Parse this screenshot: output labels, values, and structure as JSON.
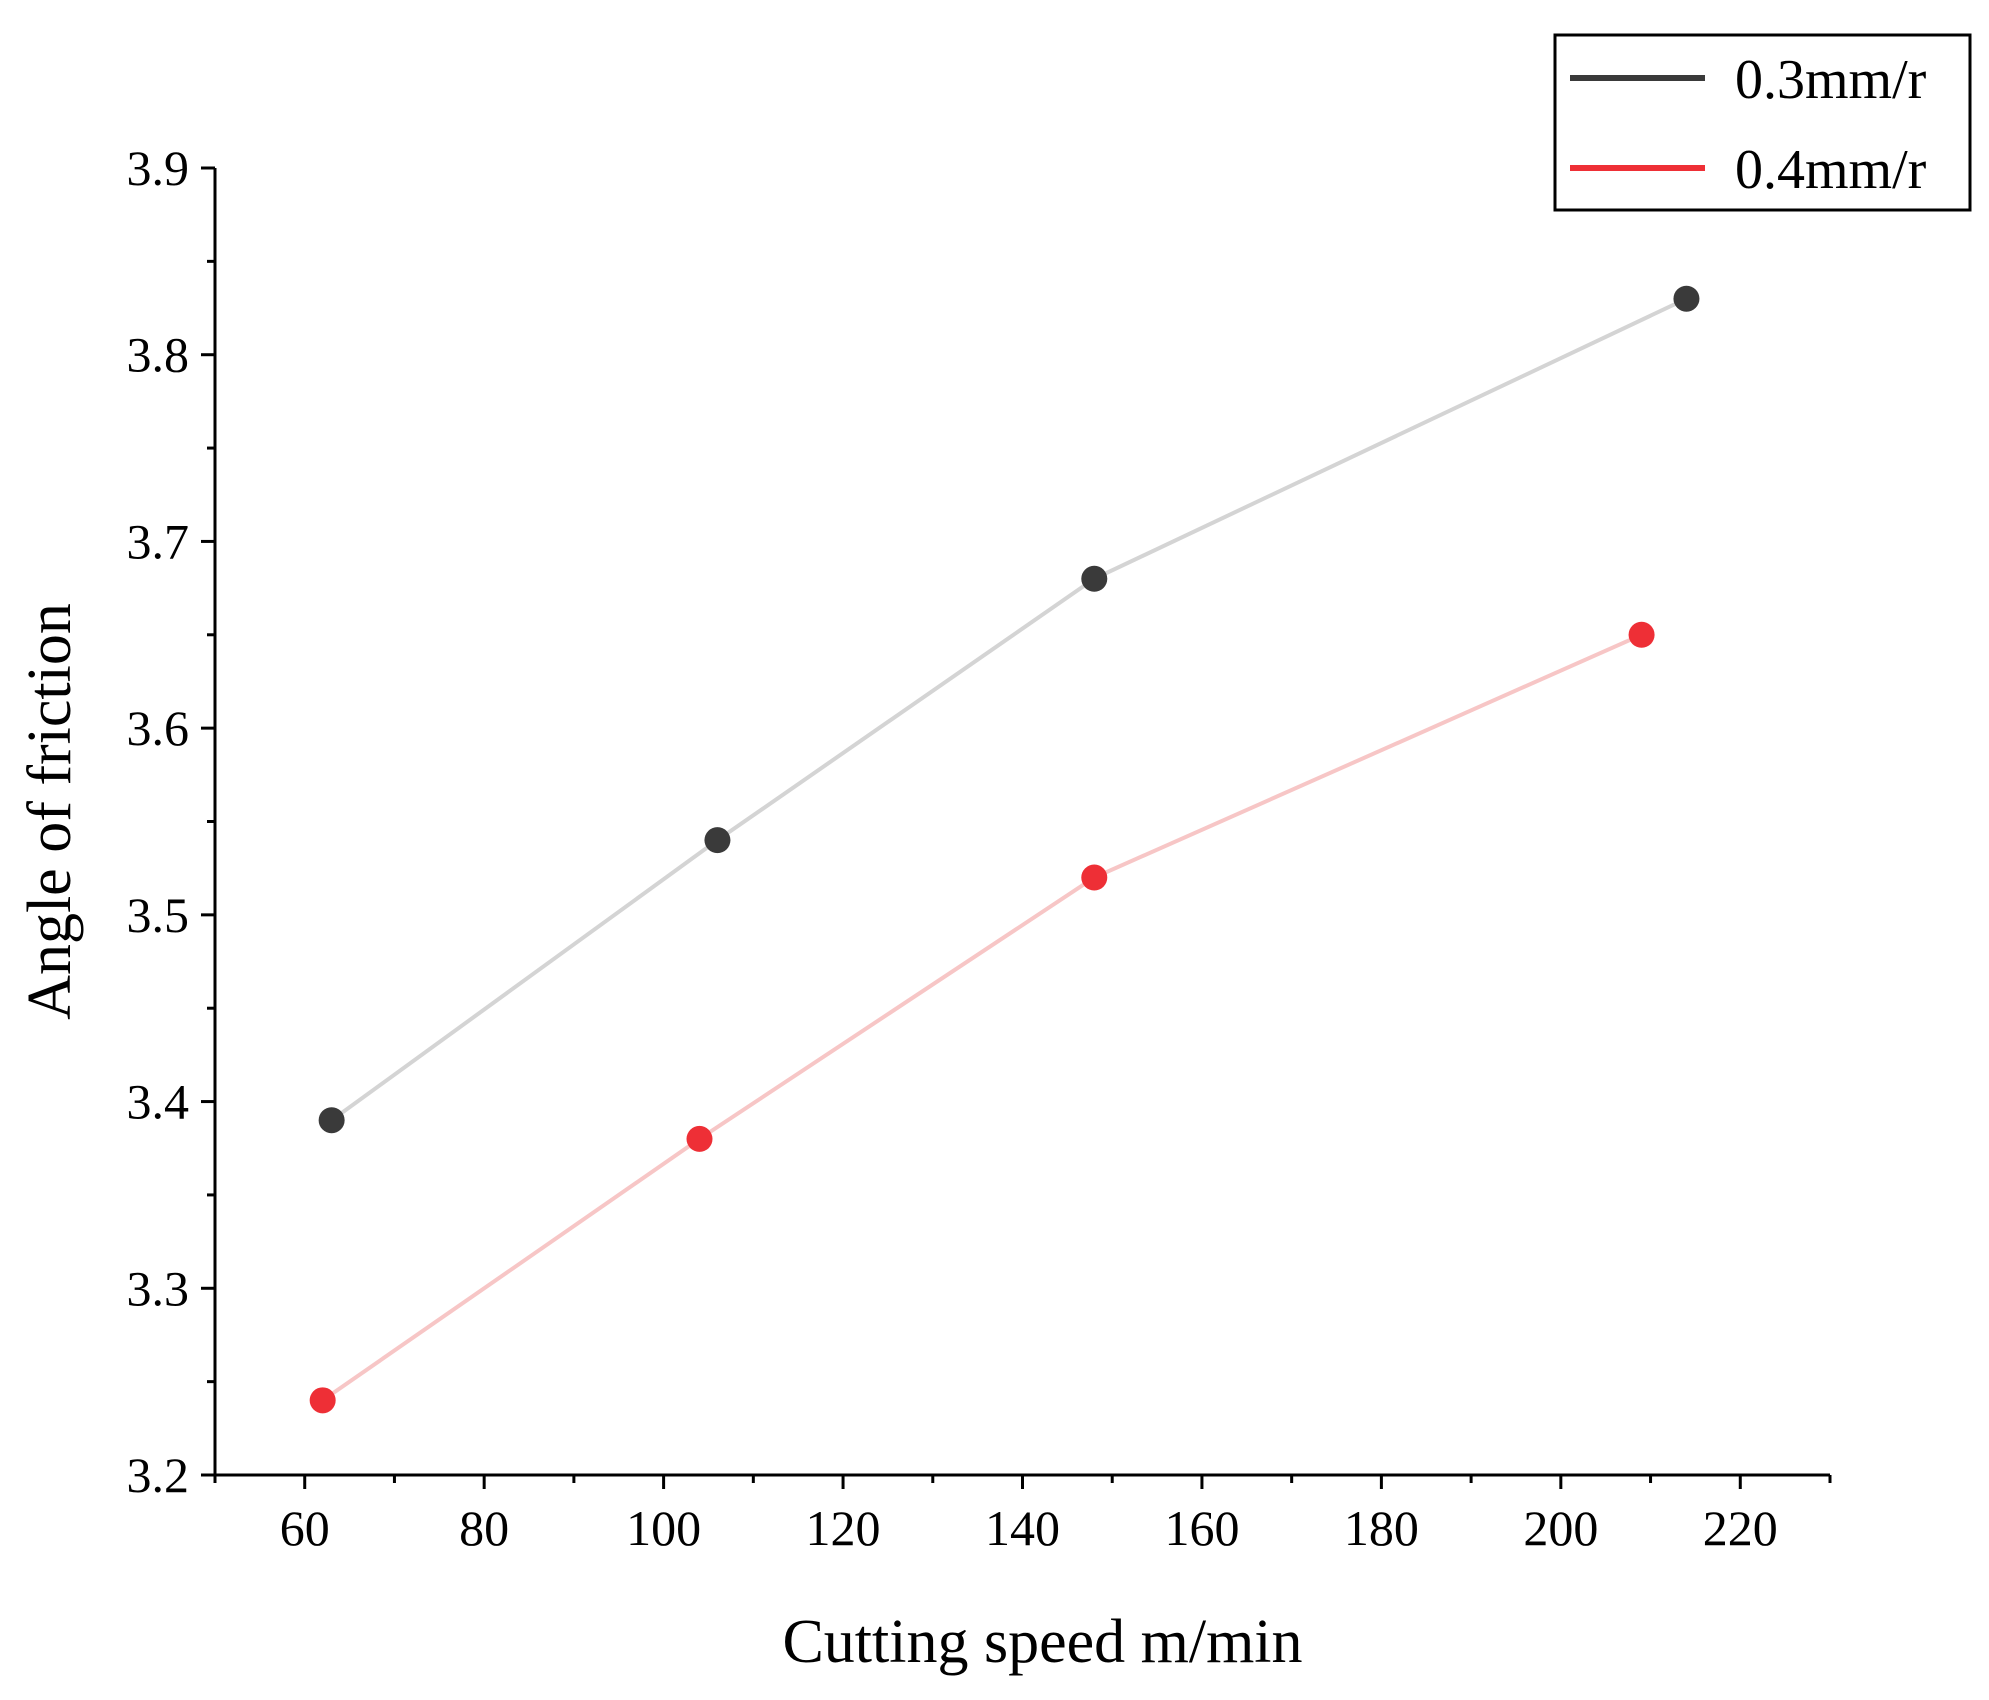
{
  "chart_data": {
    "type": "line",
    "title": "",
    "xlabel": "Cutting speed m/min",
    "ylabel": "Angle of friction",
    "xlim": [
      50,
      230
    ],
    "ylim": [
      3.2,
      3.9
    ],
    "x_ticks": [
      60,
      80,
      100,
      120,
      140,
      160,
      180,
      200,
      220
    ],
    "x_tick_labels": [
      "60",
      "80",
      "100",
      "120",
      "140",
      "160",
      "180",
      "200",
      "220"
    ],
    "y_ticks": [
      3.2,
      3.3,
      3.4,
      3.5,
      3.6,
      3.7,
      3.8,
      3.9
    ],
    "y_tick_labels": [
      "3.2",
      "3.3",
      "3.4",
      "3.5",
      "3.6",
      "3.7",
      "3.8",
      "3.9"
    ],
    "grid": false,
    "legend_position": "top-right",
    "series": [
      {
        "name": "0.3mm/r",
        "x": [
          63,
          106,
          148,
          214
        ],
        "y": [
          3.39,
          3.54,
          3.68,
          3.83
        ],
        "line_color": "#d4d4d4",
        "marker_color": "#3a3a3a",
        "legend_color": "#3a3a3a"
      },
      {
        "name": "0.4mm/r",
        "x": [
          62,
          104,
          148,
          209
        ],
        "y": [
          3.24,
          3.38,
          3.52,
          3.65
        ],
        "line_color": "#f7c6c6",
        "marker_color": "#ee2f36",
        "legend_color": "#ee2f36"
      }
    ]
  }
}
